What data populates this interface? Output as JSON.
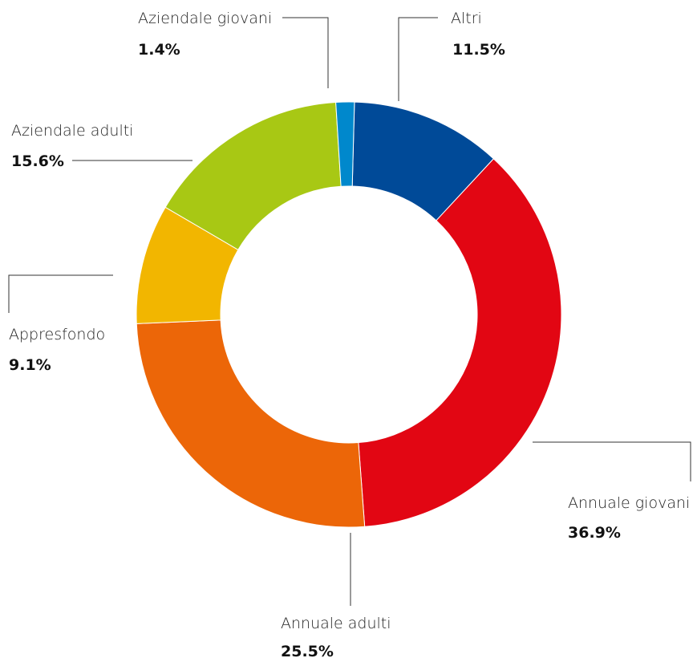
{
  "chart_data": {
    "type": "pie",
    "donut": true,
    "title": "",
    "legend": "none",
    "unit": "%",
    "slices": [
      {
        "label": "Altri",
        "value": 11.5,
        "display": "11.5%",
        "color": "#004a98"
      },
      {
        "label": "Annuale giovani",
        "value": 36.9,
        "display": "36.9%",
        "color": "#e20613"
      },
      {
        "label": "Annuale adulti",
        "value": 25.5,
        "display": "25.5%",
        "color": "#ec6608"
      },
      {
        "label": "Appresfondo",
        "value": 9.1,
        "display": "9.1%",
        "color": "#f2b600"
      },
      {
        "label": "Aziendale adulti",
        "value": 15.6,
        "display": "15.6%",
        "color": "#a8c814"
      },
      {
        "label": "Aziendale giovani",
        "value": 1.4,
        "display": "1.4%",
        "color": "#0088cc"
      }
    ]
  }
}
